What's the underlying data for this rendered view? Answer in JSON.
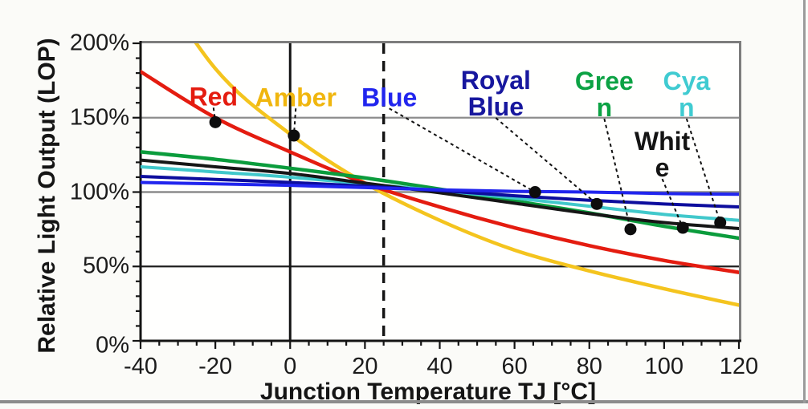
{
  "chart_data": {
    "type": "line",
    "title": "",
    "xlabel": "Junction Temperature TJ [°C]",
    "ylabel": "Relative Light Output (LOP)",
    "xlim": [
      -40,
      120
    ],
    "ylim": [
      0,
      200
    ],
    "grid": "horizontal gridlines at 50/100/150/200%, vertical solid reference at 0 °C, vertical dashed reference at 25 °C",
    "legend_position": "inline labels with leader lines and dot markers",
    "x_ticks": {
      "values": [
        -40,
        -20,
        0,
        20,
        40,
        60,
        80,
        100,
        120
      ],
      "labels": [
        "-40",
        "-20",
        "0",
        "20",
        "40",
        "60",
        "80",
        "100",
        "120"
      ],
      "minor_step": 5
    },
    "y_ticks": {
      "values": [
        0,
        50,
        100,
        150,
        200
      ],
      "labels": [
        "0%",
        "50%",
        "100%",
        "150%",
        "200%"
      ],
      "minor_step": 10
    },
    "reference_lines": {
      "vertical_solid_at": 0,
      "vertical_dashed_at": 25,
      "horizontal_gray_at": [
        100,
        150
      ],
      "horizontal_black_at": [
        50
      ]
    },
    "x": [
      -40,
      -20,
      0,
      20,
      40,
      60,
      80,
      100,
      120
    ],
    "series": [
      {
        "name": "Amber",
        "color": "#f4c41e",
        "width": 4.5,
        "values": [
          258,
          183,
          139,
          106,
          81,
          61,
          47,
          35,
          24
        ]
      },
      {
        "name": "Red",
        "color": "#e41c10",
        "width": 4.5,
        "values": [
          181,
          150,
          127,
          106,
          90,
          76,
          64,
          54,
          46
        ]
      },
      {
        "name": "Green",
        "color": "#0b9c3c",
        "width": 4.5,
        "values": [
          127,
          122,
          116,
          109.5,
          102,
          94,
          86,
          77,
          69
        ]
      },
      {
        "name": "Cyan",
        "color": "#41c8cb",
        "width": 4,
        "values": [
          117,
          113.5,
          110,
          105.5,
          101,
          96,
          90.5,
          85,
          81
        ]
      },
      {
        "name": "White",
        "color": "#161616",
        "width": 4,
        "values": [
          121.5,
          117,
          112.5,
          106,
          99.5,
          92.5,
          85.5,
          79.5,
          75.5
        ]
      },
      {
        "name": "Royal Blue",
        "color": "#0d0d9d",
        "width": 4,
        "values": [
          110.5,
          108.5,
          106.5,
          104,
          101,
          97.5,
          94.5,
          92,
          90
        ]
      },
      {
        "name": "Blue",
        "color": "#2125ee",
        "width": 4,
        "values": [
          106.5,
          105.5,
          104.5,
          103,
          101.5,
          100.5,
          100,
          99,
          98.5
        ]
      }
    ],
    "annotations": [
      {
        "series": "Red",
        "label_lines": [
          "Red"
        ],
        "color": "#e41c10",
        "label_at": [
          -20.5,
          164
        ],
        "points_to": [
          -20,
          147
        ]
      },
      {
        "series": "Amber",
        "label_lines": [
          "Amber"
        ],
        "color": "#f0b60e",
        "label_at": [
          1.5,
          163.5
        ],
        "points_to": [
          1,
          138
        ]
      },
      {
        "series": "Blue",
        "label_lines": [
          "Blue"
        ],
        "color": "#2125ee",
        "label_at": [
          26.5,
          163.5
        ],
        "points_to": [
          65.5,
          100
        ]
      },
      {
        "series": "Royal Blue",
        "label_lines": [
          "Royal",
          "Blue"
        ],
        "color": "#17179e",
        "label_at": [
          55,
          166
        ],
        "points_to": [
          82,
          92
        ]
      },
      {
        "series": "Green",
        "label_lines": [
          "Gree",
          "n"
        ],
        "color": "#0ca244",
        "label_at": [
          84,
          165.5
        ],
        "points_to": [
          91,
          75
        ]
      },
      {
        "series": "Cyan",
        "label_lines": [
          "Cya",
          "n"
        ],
        "color": "#40cbd1",
        "label_at": [
          106,
          165.5
        ],
        "points_to": [
          115,
          79.5
        ]
      },
      {
        "series": "White",
        "label_lines": [
          "Whit",
          "e"
        ],
        "color": "#141414",
        "label_at": [
          99.5,
          125
        ],
        "points_to": [
          105,
          76
        ]
      }
    ]
  }
}
